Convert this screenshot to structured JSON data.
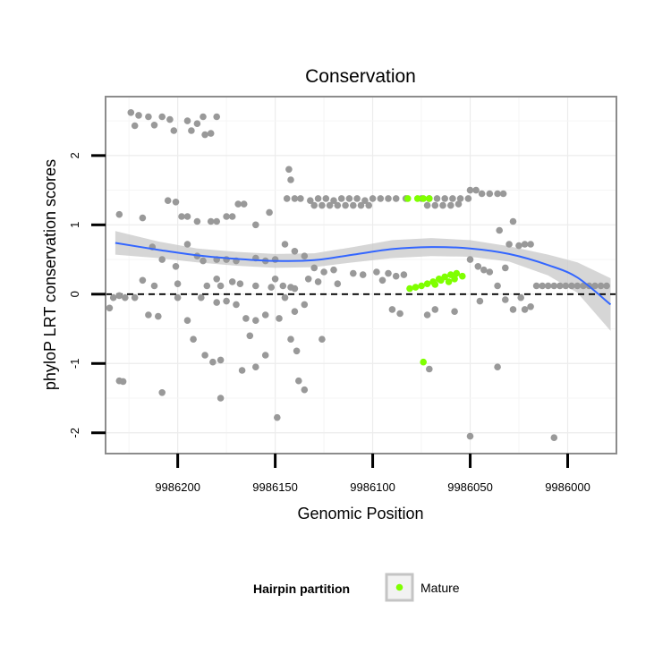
{
  "chart_data": {
    "type": "scatter",
    "title": "Conservation",
    "xlabel": "Genomic Position",
    "ylabel": "phyloP LRT conservation scores",
    "x_reversed": true,
    "xlim": [
      9986237,
      9985975
    ],
    "ylim": [
      -2.3,
      2.85
    ],
    "x_ticks": [
      9986200,
      9986150,
      9986100,
      9986050,
      9986000
    ],
    "x_tick_labels": [
      "9986200",
      "9986150",
      "9986100",
      "9986050",
      "9986000"
    ],
    "y_ticks": [
      -2,
      -1,
      0,
      1,
      2
    ],
    "y_tick_labels": [
      "-2",
      "-1",
      "0",
      "1",
      "2"
    ],
    "grid": true,
    "reference_line": {
      "y": 0,
      "style": "dashed",
      "color": "#000000"
    },
    "colors": {
      "other": "#999999",
      "mature": "#7FFF00",
      "smooth": "#3366FF",
      "ribbon": "#C8C8C8"
    },
    "legend": {
      "title": "Hairpin partition",
      "position": "bottom",
      "entries": [
        {
          "label": "Mature",
          "color": "#7FFF00"
        }
      ]
    },
    "series": [
      {
        "name": "",
        "color": "#999999",
        "points": [
          [
            9986224,
            2.62
          ],
          [
            9986220,
            2.58
          ],
          [
            9986215,
            2.56
          ],
          [
            9986208,
            2.56
          ],
          [
            9986204,
            2.52
          ],
          [
            9986195,
            2.5
          ],
          [
            9986190,
            2.46
          ],
          [
            9986187,
            2.56
          ],
          [
            9986212,
            2.44
          ],
          [
            9986202,
            2.36
          ],
          [
            9986193,
            2.36
          ],
          [
            9986186,
            2.3
          ],
          [
            9986183,
            2.32
          ],
          [
            9986180,
            2.56
          ],
          [
            9986222,
            2.43
          ],
          [
            9986230,
            1.15
          ],
          [
            9986218,
            1.1
          ],
          [
            9986205,
            1.35
          ],
          [
            9986201,
            1.33
          ],
          [
            9986198,
            1.12
          ],
          [
            9986195,
            1.12
          ],
          [
            9986190,
            1.05
          ],
          [
            9986183,
            1.05
          ],
          [
            9986180,
            1.05
          ],
          [
            9986175,
            1.12
          ],
          [
            9986172,
            1.12
          ],
          [
            9986169,
            1.3
          ],
          [
            9986166,
            1.3
          ],
          [
            9986213,
            0.68
          ],
          [
            9986208,
            0.5
          ],
          [
            9986201,
            0.4
          ],
          [
            9986195,
            0.72
          ],
          [
            9986190,
            0.55
          ],
          [
            9986187,
            0.48
          ],
          [
            9986180,
            0.5
          ],
          [
            9986175,
            0.5
          ],
          [
            9986170,
            0.48
          ],
          [
            9986160,
            0.52
          ],
          [
            9986155,
            0.48
          ],
          [
            9986150,
            0.5
          ],
          [
            9986145,
            0.72
          ],
          [
            9986140,
            0.62
          ],
          [
            9986135,
            0.55
          ],
          [
            9986130,
            0.38
          ],
          [
            9986125,
            0.32
          ],
          [
            9986120,
            0.35
          ],
          [
            9986110,
            0.3
          ],
          [
            9986105,
            0.28
          ],
          [
            9986098,
            0.32
          ],
          [
            9986092,
            0.3
          ],
          [
            9986088,
            0.26
          ],
          [
            9986084,
            0.28
          ],
          [
            9986160,
            1.0
          ],
          [
            9986153,
            1.18
          ],
          [
            9986218,
            0.2
          ],
          [
            9986212,
            0.12
          ],
          [
            9986200,
            0.15
          ],
          [
            9986185,
            0.12
          ],
          [
            9986178,
            0.12
          ],
          [
            9986168,
            0.15
          ],
          [
            9986160,
            0.12
          ],
          [
            9986152,
            0.1
          ],
          [
            9986146,
            0.12
          ],
          [
            9986140,
            0.08
          ],
          [
            9986133,
            0.22
          ],
          [
            9986128,
            0.18
          ],
          [
            9986118,
            0.15
          ],
          [
            9986095,
            0.2
          ],
          [
            9986180,
            0.22
          ],
          [
            9986172,
            0.18
          ],
          [
            9986150,
            0.22
          ],
          [
            9986142,
            0.1
          ],
          [
            9986230,
            -0.02
          ],
          [
            9986227,
            -0.05
          ],
          [
            9986222,
            -0.05
          ],
          [
            9986215,
            -0.3
          ],
          [
            9986210,
            -0.32
          ],
          [
            9986235,
            -0.2
          ],
          [
            9986233,
            -0.05
          ],
          [
            9986200,
            -0.05
          ],
          [
            9986195,
            -0.38
          ],
          [
            9986188,
            -0.05
          ],
          [
            9986180,
            -0.12
          ],
          [
            9986175,
            -0.1
          ],
          [
            9986170,
            -0.15
          ],
          [
            9986165,
            -0.35
          ],
          [
            9986160,
            -0.38
          ],
          [
            9986155,
            -0.3
          ],
          [
            9986148,
            -0.35
          ],
          [
            9986145,
            -0.05
          ],
          [
            9986140,
            -0.25
          ],
          [
            9986135,
            -0.15
          ],
          [
            9986090,
            -0.22
          ],
          [
            9986086,
            -0.28
          ],
          [
            9986072,
            -0.3
          ],
          [
            9986068,
            -0.22
          ],
          [
            9986058,
            -0.25
          ],
          [
            9986045,
            -0.1
          ],
          [
            9986032,
            -0.08
          ],
          [
            9986028,
            -0.22
          ],
          [
            9986024,
            -0.05
          ],
          [
            9986192,
            -0.65
          ],
          [
            9986186,
            -0.88
          ],
          [
            9986182,
            -0.98
          ],
          [
            9986178,
            -0.95
          ],
          [
            9986163,
            -0.6
          ],
          [
            9986155,
            -0.88
          ],
          [
            9986142,
            -0.65
          ],
          [
            9986139,
            -0.82
          ],
          [
            9986126,
            -0.65
          ],
          [
            9986167,
            -1.1
          ],
          [
            9986160,
            -1.05
          ],
          [
            9986138,
            -1.25
          ],
          [
            9986135,
            -1.38
          ],
          [
            9986071,
            -1.08
          ],
          [
            9986036,
            -1.05
          ],
          [
            9986230,
            -1.25
          ],
          [
            9986228,
            -1.26
          ],
          [
            9986208,
            -1.42
          ],
          [
            9986178,
            -1.5
          ],
          [
            9986149,
            -1.78
          ],
          [
            9986050,
            -2.05
          ],
          [
            9986007,
            -2.07
          ],
          [
            9986143,
            1.8
          ],
          [
            9986142,
            1.65
          ],
          [
            9986144,
            1.38
          ],
          [
            9986140,
            1.38
          ],
          [
            9986137,
            1.38
          ],
          [
            9986132,
            1.35
          ],
          [
            9986128,
            1.38
          ],
          [
            9986124,
            1.38
          ],
          [
            9986120,
            1.35
          ],
          [
            9986116,
            1.38
          ],
          [
            9986112,
            1.38
          ],
          [
            9986108,
            1.38
          ],
          [
            9986104,
            1.35
          ],
          [
            9986100,
            1.38
          ],
          [
            9986096,
            1.38
          ],
          [
            9986092,
            1.38
          ],
          [
            9986088,
            1.38
          ],
          [
            9986083,
            1.38
          ],
          [
            9986130,
            1.28
          ],
          [
            9986126,
            1.28
          ],
          [
            9986122,
            1.28
          ],
          [
            9986118,
            1.28
          ],
          [
            9986114,
            1.28
          ],
          [
            9986110,
            1.28
          ],
          [
            9986106,
            1.28
          ],
          [
            9986102,
            1.28
          ],
          [
            9986075,
            1.38
          ],
          [
            9986071,
            1.38
          ],
          [
            9986067,
            1.38
          ],
          [
            9986063,
            1.38
          ],
          [
            9986059,
            1.38
          ],
          [
            9986055,
            1.38
          ],
          [
            9986051,
            1.38
          ],
          [
            9986072,
            1.28
          ],
          [
            9986068,
            1.28
          ],
          [
            9986064,
            1.28
          ],
          [
            9986060,
            1.28
          ],
          [
            9986056,
            1.3
          ],
          [
            9986050,
            1.5
          ],
          [
            9986047,
            1.5
          ],
          [
            9986044,
            1.45
          ],
          [
            9986040,
            1.45
          ],
          [
            9986036,
            1.45
          ],
          [
            9986033,
            1.45
          ],
          [
            9986050,
            0.5
          ],
          [
            9986046,
            0.4
          ],
          [
            9986043,
            0.35
          ],
          [
            9986040,
            0.32
          ],
          [
            9986036,
            0.12
          ],
          [
            9986032,
            0.38
          ],
          [
            9986030,
            0.72
          ],
          [
            9986028,
            1.05
          ],
          [
            9986025,
            0.7
          ],
          [
            9986022,
            0.72
          ],
          [
            9986019,
            0.72
          ],
          [
            9986035,
            0.92
          ],
          [
            9986016,
            0.12
          ],
          [
            9986013,
            0.12
          ],
          [
            9986010,
            0.12
          ],
          [
            9986007,
            0.12
          ],
          [
            9986004,
            0.12
          ],
          [
            9986001,
            0.12
          ],
          [
            9985998,
            0.12
          ],
          [
            9985995,
            0.12
          ],
          [
            9985992,
            0.12
          ],
          [
            9985989,
            0.12
          ],
          [
            9985986,
            0.12
          ],
          [
            9985983,
            0.12
          ],
          [
            9985980,
            0.12
          ],
          [
            9986019,
            -0.18
          ],
          [
            9986022,
            -0.22
          ]
        ]
      },
      {
        "name": "Mature",
        "color": "#7FFF00",
        "points": [
          [
            9986082,
            1.38
          ],
          [
            9986077,
            1.38
          ],
          [
            9986074,
            1.38
          ],
          [
            9986071,
            1.38
          ],
          [
            9986081,
            0.08
          ],
          [
            9986078,
            0.1
          ],
          [
            9986075,
            0.12
          ],
          [
            9986072,
            0.15
          ],
          [
            9986069,
            0.18
          ],
          [
            9986066,
            0.22
          ],
          [
            9986063,
            0.25
          ],
          [
            9986060,
            0.28
          ],
          [
            9986057,
            0.3
          ],
          [
            9986054,
            0.26
          ],
          [
            9986058,
            0.22
          ],
          [
            9986061,
            0.18
          ],
          [
            9986065,
            0.2
          ],
          [
            9986068,
            0.14
          ],
          [
            9986074,
            -0.98
          ]
        ]
      }
    ],
    "smooth": {
      "x": [
        9986232,
        9986210,
        9986190,
        9986170,
        9986150,
        9986130,
        9986110,
        9986090,
        9986070,
        9986050,
        9986030,
        9986010,
        9985995,
        9985978
      ],
      "y": [
        0.74,
        0.64,
        0.56,
        0.51,
        0.48,
        0.49,
        0.57,
        0.65,
        0.68,
        0.66,
        0.58,
        0.42,
        0.24,
        -0.15
      ],
      "se": [
        0.17,
        0.12,
        0.1,
        0.1,
        0.1,
        0.1,
        0.11,
        0.13,
        0.13,
        0.12,
        0.11,
        0.15,
        0.22,
        0.38
      ]
    }
  }
}
